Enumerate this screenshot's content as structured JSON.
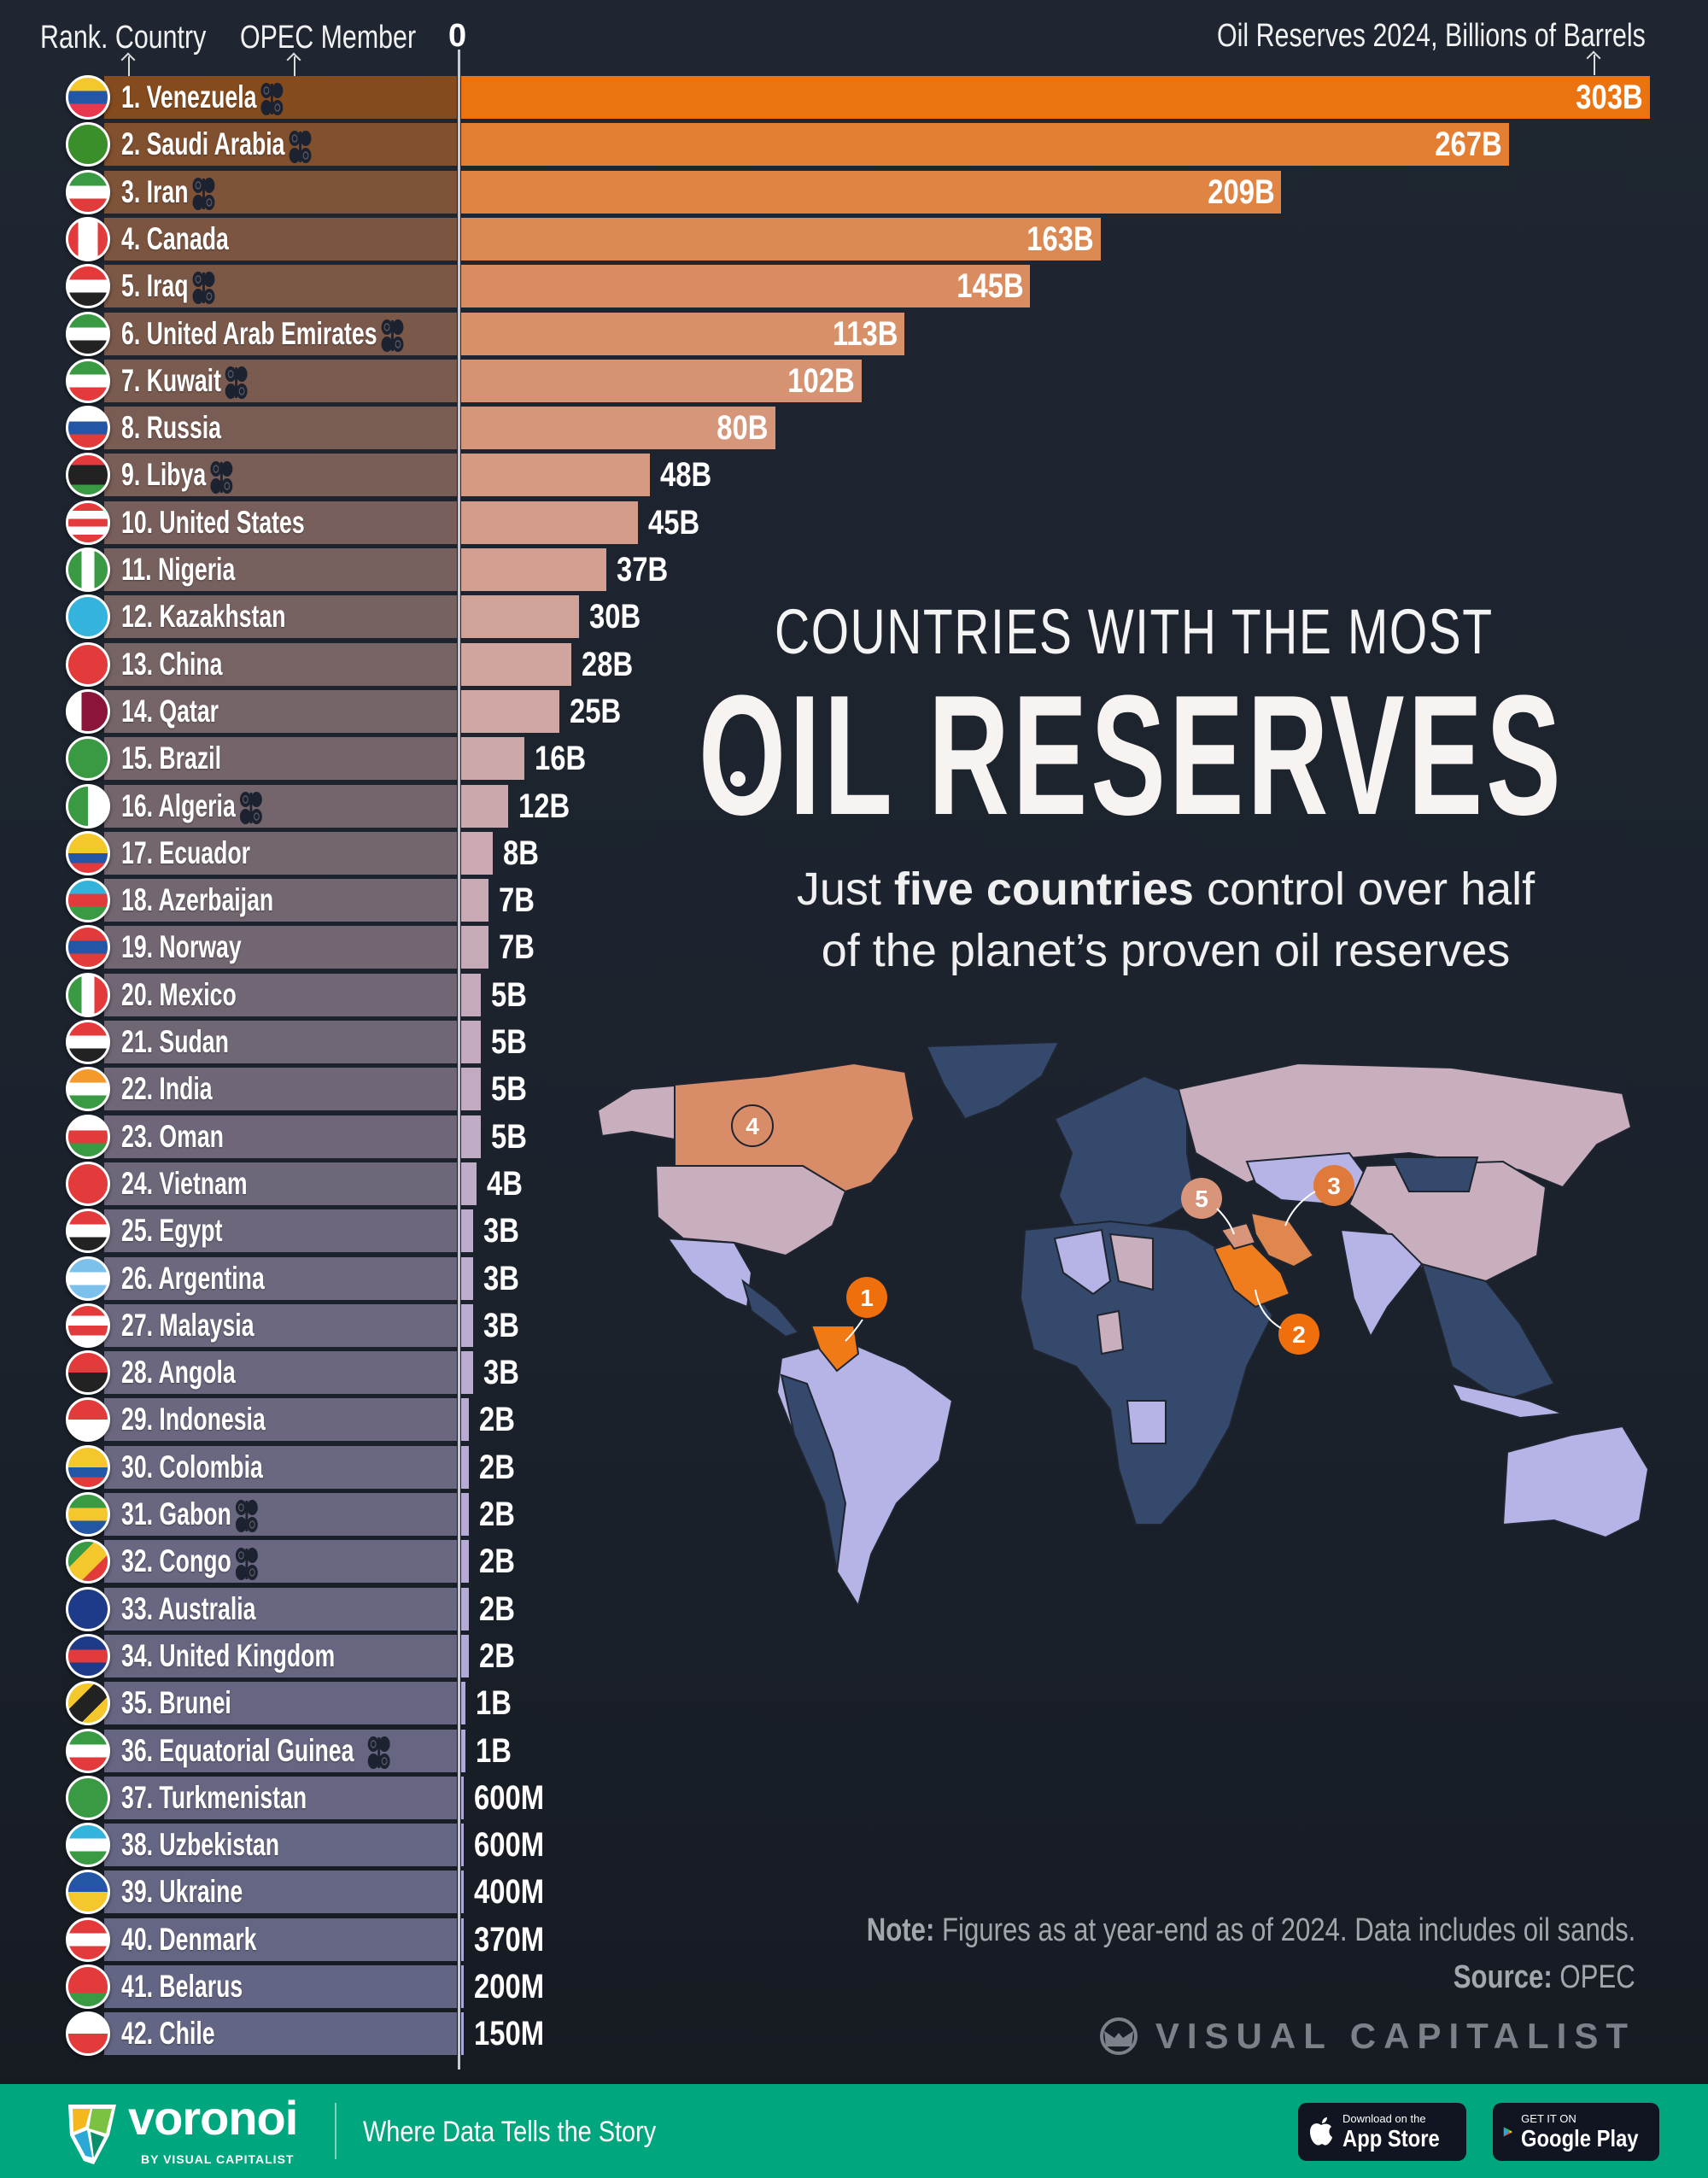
{
  "header": {
    "rank_country_label": "Rank. Country",
    "opec_label": "OPEC Member",
    "zero_label": "0",
    "value_axis_label": "Oil Reserves 2024, Billions of Barrels"
  },
  "title": {
    "line1": "COUNTRIES WITH THE MOST",
    "line2": "OIL RESERVES",
    "subtitle_pre": "Just ",
    "subtitle_bold": "five countries",
    "subtitle_post": " control over half",
    "subtitle_line2": "of the planet’s proven oil reserves"
  },
  "map": {
    "markers": [
      "1",
      "2",
      "3",
      "4",
      "5"
    ],
    "colors": {
      "ocean_land_other": "#34496b",
      "rank1": "#ef7a16",
      "rank2": "#ef7d1e",
      "rank3": "#e0874f",
      "rank4": "#d98c68",
      "rank5": "#d9957a",
      "pink": "#c9aebd",
      "lavender": "#b6b4e6"
    }
  },
  "footer_note": {
    "note_label": "Note:",
    "note_text": " Figures as at year-end as of 2024. Data includes oil sands.",
    "source_label": "Source:",
    "source_text": " OPEC",
    "brand": "VISUAL CAPITALIST"
  },
  "footer": {
    "logo": "voronoi",
    "logo_sub": "BY VISUAL CAPITALIST",
    "tagline": "Where Data Tells the Story",
    "app_store_small": "Download on the",
    "app_store": "App Store",
    "google_small": "GET IT ON",
    "google": "Google Play",
    "bg_color": "#00a67e"
  },
  "chart_data": {
    "type": "bar",
    "orientation": "horizontal",
    "xlabel": "Oil Reserves 2024, Billions of Barrels",
    "xlim": [
      0,
      303
    ],
    "bar_color_scale": [
      "#ec7410",
      "#d98c60",
      "#cfa7a4",
      "#bcadd0",
      "#a9a8dc"
    ],
    "opec_icon": "opec-logo-icon",
    "rows": [
      {
        "rank": 1,
        "country": "Venezuela",
        "value": 303,
        "label": "303B",
        "opec": true,
        "flag": [
          "#f4c82d",
          "#2456a6",
          "#e8384f"
        ],
        "dir": "h"
      },
      {
        "rank": 2,
        "country": "Saudi Arabia",
        "value": 267,
        "label": "267B",
        "opec": true,
        "flag": [
          "#3a8f2b"
        ],
        "dir": "h"
      },
      {
        "rank": 3,
        "country": "Iran",
        "value": 209,
        "label": "209B",
        "opec": true,
        "flag": [
          "#3a9a44",
          "#ffffff",
          "#e33b3b"
        ],
        "dir": "h"
      },
      {
        "rank": 4,
        "country": "Canada",
        "value": 163,
        "label": "163B",
        "opec": false,
        "flag": [
          "#e33b3b",
          "#ffffff",
          "#ffffff",
          "#e33b3b"
        ],
        "dir": "v"
      },
      {
        "rank": 5,
        "country": "Iraq",
        "value": 145,
        "label": "145B",
        "opec": true,
        "flag": [
          "#e33b3b",
          "#ffffff",
          "#222222"
        ],
        "dir": "h"
      },
      {
        "rank": 6,
        "country": "United Arab Emirates",
        "value": 113,
        "label": "113B",
        "opec": true,
        "flag": [
          "#3a9a44",
          "#ffffff",
          "#222222"
        ],
        "dir": "h"
      },
      {
        "rank": 7,
        "country": "Kuwait",
        "value": 102,
        "label": "102B",
        "opec": true,
        "flag": [
          "#3a9a44",
          "#ffffff",
          "#e33b3b"
        ],
        "dir": "h"
      },
      {
        "rank": 8,
        "country": "Russia",
        "value": 80,
        "label": "80B",
        "opec": false,
        "flag": [
          "#ffffff",
          "#2456a6",
          "#e33b3b"
        ],
        "dir": "h"
      },
      {
        "rank": 9,
        "country": "Libya",
        "value": 48,
        "label": "48B",
        "opec": true,
        "flag": [
          "#e33b3b",
          "#222222",
          "#222222",
          "#3a9a44"
        ],
        "dir": "h"
      },
      {
        "rank": 10,
        "country": "United States",
        "value": 45,
        "label": "45B",
        "opec": false,
        "flag": [
          "#e33b3b",
          "#ffffff",
          "#e33b3b",
          "#ffffff",
          "#e33b3b"
        ],
        "dir": "h"
      },
      {
        "rank": 11,
        "country": "Nigeria",
        "value": 37,
        "label": "37B",
        "opec": false,
        "flag": [
          "#3a9a44",
          "#ffffff",
          "#3a9a44"
        ],
        "dir": "v"
      },
      {
        "rank": 12,
        "country": "Kazakhstan",
        "value": 30,
        "label": "30B",
        "opec": false,
        "flag": [
          "#34b4dc"
        ],
        "dir": "h"
      },
      {
        "rank": 13,
        "country": "China",
        "value": 28,
        "label": "28B",
        "opec": false,
        "flag": [
          "#e33b3b"
        ],
        "dir": "h"
      },
      {
        "rank": 14,
        "country": "Qatar",
        "value": 25,
        "label": "25B",
        "opec": false,
        "flag": [
          "#ffffff",
          "#8a1538",
          "#8a1538"
        ],
        "dir": "v"
      },
      {
        "rank": 15,
        "country": "Brazil",
        "value": 16,
        "label": "16B",
        "opec": false,
        "flag": [
          "#3a9a44"
        ],
        "dir": "h"
      },
      {
        "rank": 16,
        "country": "Algeria",
        "value": 12,
        "label": "12B",
        "opec": true,
        "flag": [
          "#3a9a44",
          "#ffffff"
        ],
        "dir": "v"
      },
      {
        "rank": 17,
        "country": "Ecuador",
        "value": 8,
        "label": "8B",
        "opec": false,
        "flag": [
          "#f4c82d",
          "#f4c82d",
          "#2456a6",
          "#e33b3b"
        ],
        "dir": "h"
      },
      {
        "rank": 18,
        "country": "Azerbaijan",
        "value": 7,
        "label": "7B",
        "opec": false,
        "flag": [
          "#34b4dc",
          "#e33b3b",
          "#3a9a44"
        ],
        "dir": "h"
      },
      {
        "rank": 19,
        "country": "Norway",
        "value": 7,
        "label": "7B",
        "opec": false,
        "flag": [
          "#e33b3b",
          "#2456a6",
          "#e33b3b"
        ],
        "dir": "h"
      },
      {
        "rank": 20,
        "country": "Mexico",
        "value": 5,
        "label": "5B",
        "opec": false,
        "flag": [
          "#3a9a44",
          "#ffffff",
          "#e33b3b"
        ],
        "dir": "v"
      },
      {
        "rank": 21,
        "country": "Sudan",
        "value": 5,
        "label": "5B",
        "opec": false,
        "flag": [
          "#e33b3b",
          "#ffffff",
          "#222222"
        ],
        "dir": "h"
      },
      {
        "rank": 22,
        "country": "India",
        "value": 5,
        "label": "5B",
        "opec": false,
        "flag": [
          "#f39a2b",
          "#ffffff",
          "#3a9a44"
        ],
        "dir": "h"
      },
      {
        "rank": 23,
        "country": "Oman",
        "value": 5,
        "label": "5B",
        "opec": false,
        "flag": [
          "#ffffff",
          "#e33b3b",
          "#3a9a44"
        ],
        "dir": "h"
      },
      {
        "rank": 24,
        "country": "Vietnam",
        "value": 4,
        "label": "4B",
        "opec": false,
        "flag": [
          "#e33b3b"
        ],
        "dir": "h"
      },
      {
        "rank": 25,
        "country": "Egypt",
        "value": 3,
        "label": "3B",
        "opec": false,
        "flag": [
          "#e33b3b",
          "#ffffff",
          "#222222"
        ],
        "dir": "h"
      },
      {
        "rank": 26,
        "country": "Argentina",
        "value": 3,
        "label": "3B",
        "opec": false,
        "flag": [
          "#7cc0ec",
          "#ffffff",
          "#7cc0ec"
        ],
        "dir": "h"
      },
      {
        "rank": 27,
        "country": "Malaysia",
        "value": 3,
        "label": "3B",
        "opec": false,
        "flag": [
          "#e33b3b",
          "#ffffff",
          "#e33b3b",
          "#ffffff"
        ],
        "dir": "h"
      },
      {
        "rank": 28,
        "country": "Angola",
        "value": 3,
        "label": "3B",
        "opec": false,
        "flag": [
          "#e33b3b",
          "#222222"
        ],
        "dir": "h"
      },
      {
        "rank": 29,
        "country": "Indonesia",
        "value": 2,
        "label": "2B",
        "opec": false,
        "flag": [
          "#e33b3b",
          "#ffffff"
        ],
        "dir": "h"
      },
      {
        "rank": 30,
        "country": "Colombia",
        "value": 2,
        "label": "2B",
        "opec": false,
        "flag": [
          "#f4c82d",
          "#f4c82d",
          "#2456a6",
          "#e33b3b"
        ],
        "dir": "h"
      },
      {
        "rank": 31,
        "country": "Gabon",
        "value": 2,
        "label": "2B",
        "opec": true,
        "flag": [
          "#3a9a44",
          "#f4c82d",
          "#2456a6"
        ],
        "dir": "h"
      },
      {
        "rank": 32,
        "country": "Congo",
        "value": 2,
        "label": "2B",
        "opec": true,
        "flag": [
          "#3a9a44",
          "#f4c82d",
          "#e33b3b"
        ],
        "dir": "d"
      },
      {
        "rank": 33,
        "country": "Australia",
        "value": 2,
        "label": "2B",
        "opec": false,
        "flag": [
          "#1e3b8a"
        ],
        "dir": "h"
      },
      {
        "rank": 34,
        "country": "United Kingdom",
        "value": 2,
        "label": "2B",
        "opec": false,
        "flag": [
          "#1e3b8a",
          "#e33b3b",
          "#1e3b8a"
        ],
        "dir": "h"
      },
      {
        "rank": 35,
        "country": "Brunei",
        "value": 1,
        "label": "1B",
        "opec": false,
        "flag": [
          "#f4c82d",
          "#222222",
          "#f4c82d"
        ],
        "dir": "d"
      },
      {
        "rank": 36,
        "country": "Equatorial Guinea",
        "value": 1,
        "label": "1B",
        "opec": true,
        "flag": [
          "#3a9a44",
          "#ffffff",
          "#e33b3b"
        ],
        "dir": "h"
      },
      {
        "rank": 37,
        "country": "Turkmenistan",
        "value": 0.6,
        "label": "600M",
        "opec": false,
        "flag": [
          "#3a9a44"
        ],
        "dir": "h"
      },
      {
        "rank": 38,
        "country": "Uzbekistan",
        "value": 0.6,
        "label": "600M",
        "opec": false,
        "flag": [
          "#34b4dc",
          "#ffffff",
          "#3a9a44"
        ],
        "dir": "h"
      },
      {
        "rank": 39,
        "country": "Ukraine",
        "value": 0.4,
        "label": "400M",
        "opec": false,
        "flag": [
          "#2456a6",
          "#f4c82d"
        ],
        "dir": "h"
      },
      {
        "rank": 40,
        "country": "Denmark",
        "value": 0.37,
        "label": "370M",
        "opec": false,
        "flag": [
          "#e33b3b",
          "#ffffff",
          "#e33b3b"
        ],
        "dir": "h"
      },
      {
        "rank": 41,
        "country": "Belarus",
        "value": 0.2,
        "label": "200M",
        "opec": false,
        "flag": [
          "#e33b3b",
          "#e33b3b",
          "#3a9a44"
        ],
        "dir": "h"
      },
      {
        "rank": 42,
        "country": "Chile",
        "value": 0.15,
        "label": "150M",
        "opec": false,
        "flag": [
          "#ffffff",
          "#e33b3b"
        ],
        "dir": "h"
      }
    ]
  }
}
